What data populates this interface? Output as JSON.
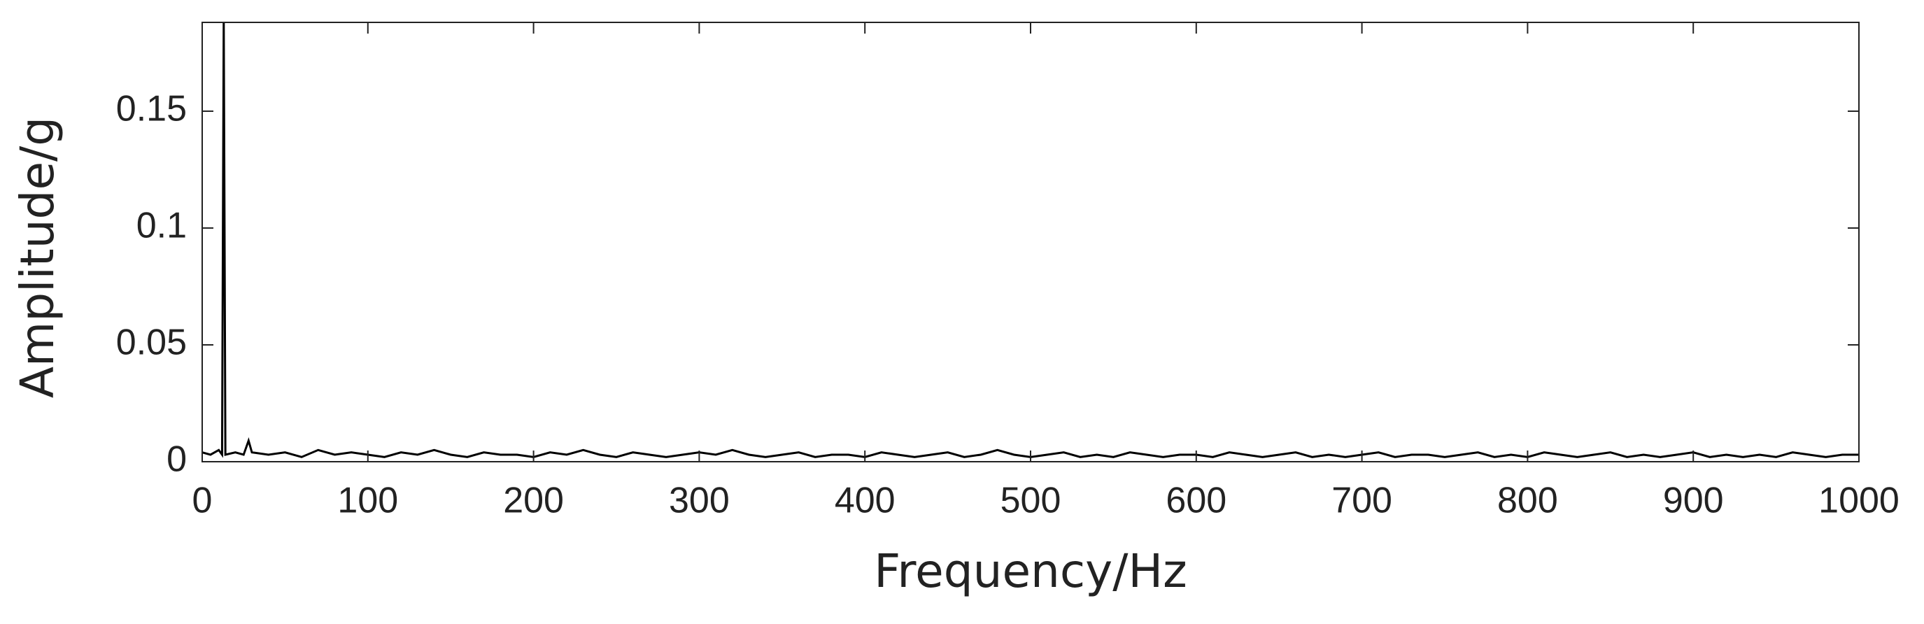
{
  "chart_data": {
    "type": "line",
    "xlabel": "Frequency/Hz",
    "ylabel": "Amplitude/g",
    "x": [
      0,
      5,
      10,
      12,
      13,
      14,
      20,
      25,
      28,
      30,
      40,
      50,
      60,
      70,
      80,
      90,
      100,
      110,
      120,
      130,
      140,
      150,
      160,
      170,
      180,
      190,
      200,
      210,
      220,
      230,
      240,
      250,
      260,
      270,
      280,
      290,
      300,
      310,
      320,
      330,
      340,
      350,
      360,
      370,
      380,
      390,
      400,
      410,
      420,
      430,
      440,
      450,
      460,
      470,
      480,
      490,
      500,
      510,
      520,
      530,
      540,
      550,
      560,
      570,
      580,
      590,
      600,
      610,
      620,
      630,
      640,
      650,
      660,
      670,
      680,
      690,
      700,
      710,
      720,
      730,
      740,
      750,
      760,
      770,
      780,
      790,
      800,
      810,
      820,
      830,
      840,
      850,
      860,
      870,
      880,
      890,
      900,
      910,
      920,
      930,
      940,
      950,
      960,
      970,
      980,
      990,
      1000
    ],
    "series": [
      {
        "color": "#000000",
        "values": [
          0.004,
          0.003,
          0.005,
          0.003,
          0.19,
          0.003,
          0.004,
          0.003,
          0.009,
          0.004,
          0.003,
          0.004,
          0.002,
          0.005,
          0.003,
          0.004,
          0.003,
          0.002,
          0.004,
          0.003,
          0.005,
          0.003,
          0.002,
          0.004,
          0.003,
          0.003,
          0.002,
          0.004,
          0.003,
          0.005,
          0.003,
          0.002,
          0.004,
          0.003,
          0.002,
          0.003,
          0.004,
          0.003,
          0.005,
          0.003,
          0.002,
          0.003,
          0.004,
          0.002,
          0.003,
          0.003,
          0.002,
          0.004,
          0.003,
          0.002,
          0.003,
          0.004,
          0.002,
          0.003,
          0.005,
          0.003,
          0.002,
          0.003,
          0.004,
          0.002,
          0.003,
          0.002,
          0.004,
          0.003,
          0.002,
          0.003,
          0.003,
          0.002,
          0.004,
          0.003,
          0.002,
          0.003,
          0.004,
          0.002,
          0.003,
          0.002,
          0.003,
          0.004,
          0.002,
          0.003,
          0.003,
          0.002,
          0.003,
          0.004,
          0.002,
          0.003,
          0.002,
          0.004,
          0.003,
          0.002,
          0.003,
          0.004,
          0.002,
          0.003,
          0.002,
          0.003,
          0.004,
          0.002,
          0.003,
          0.002,
          0.003,
          0.002,
          0.004,
          0.003,
          0.002,
          0.003,
          0.003
        ]
      }
    ],
    "xlim": [
      0,
      1000
    ],
    "xticks": [
      0,
      100,
      200,
      300,
      400,
      500,
      600,
      700,
      800,
      900,
      1000
    ],
    "ylim": [
      0,
      0.188
    ],
    "yticks": [
      0,
      0.05,
      0.1,
      0.15
    ],
    "grid": false
  }
}
